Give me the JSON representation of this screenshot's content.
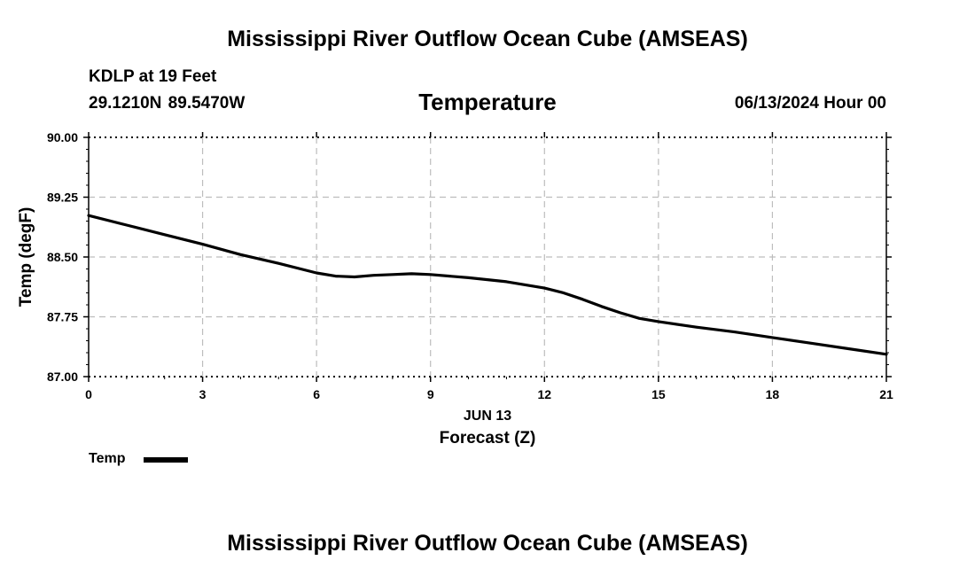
{
  "header": {
    "title": "Mississippi River Outflow Ocean Cube (AMSEAS)",
    "station": "KDLP at 19 Feet",
    "coordinates": "29.1210N  89.5470W",
    "datetime": "06/13/2024 Hour 00"
  },
  "footer": {
    "title": "Mississippi River Outflow Ocean Cube (AMSEAS)"
  },
  "legend": {
    "label": "Temp",
    "color": "#000000"
  },
  "chart_data": {
    "type": "line",
    "title": "Temperature",
    "xlabel": "Forecast (Z)",
    "xsublabel": "JUN 13",
    "ylabel": "Temp (degF)",
    "xlim": [
      0,
      21
    ],
    "ylim": [
      87.0,
      90.0
    ],
    "x_ticks": [
      0,
      3,
      6,
      9,
      12,
      15,
      18,
      21
    ],
    "x_tick_labels": [
      "0",
      "3",
      "6",
      "9",
      "12",
      "15",
      "18",
      "21"
    ],
    "y_ticks": [
      87.0,
      87.75,
      88.5,
      89.25,
      90.0
    ],
    "y_tick_labels": [
      "87.00",
      "87.75",
      "88.50",
      "89.25",
      "90.00"
    ],
    "grid": true,
    "series": [
      {
        "name": "Temp",
        "color": "#000000",
        "x": [
          0,
          1,
          2,
          3,
          4,
          5,
          6,
          6.5,
          7,
          7.5,
          8,
          8.5,
          9,
          10,
          11,
          12,
          12.5,
          13,
          13.5,
          14,
          14.5,
          15,
          16,
          17,
          18,
          19,
          20,
          21
        ],
        "y": [
          89.02,
          88.9,
          88.78,
          88.66,
          88.53,
          88.42,
          88.3,
          88.26,
          88.25,
          88.27,
          88.28,
          88.29,
          88.28,
          88.24,
          88.19,
          88.11,
          88.05,
          87.97,
          87.88,
          87.8,
          87.73,
          87.69,
          87.62,
          87.56,
          87.49,
          87.42,
          87.35,
          87.28
        ]
      }
    ]
  }
}
